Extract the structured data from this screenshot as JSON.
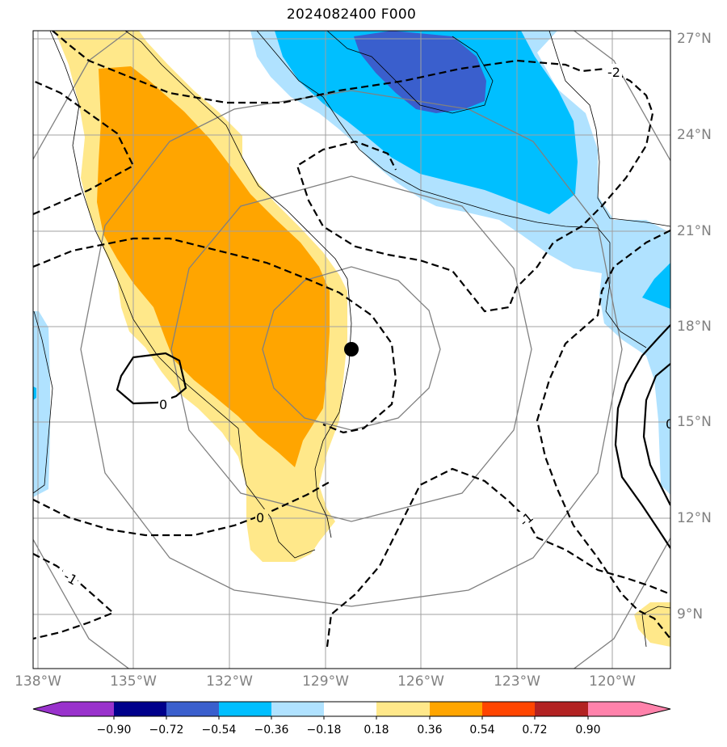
{
  "title": "2024082400 F000",
  "map": {
    "lon_labels": [
      "138°W",
      "135°W",
      "132°W",
      "129°W",
      "126°W",
      "123°W",
      "120°W"
    ],
    "lat_labels": [
      "27°N",
      "24°N",
      "21°N",
      "18°N",
      "15°N",
      "12°N",
      "9°N"
    ],
    "contour_labels": [
      "-2",
      "0",
      "0",
      "-1",
      "-1",
      "0"
    ],
    "storm_center": {
      "lon": "128.2°W",
      "lat": "17.3°N"
    }
  },
  "colorbar": {
    "ticks": [
      "−0.90",
      "−0.72",
      "−0.54",
      "−0.36",
      "−0.18",
      "0.18",
      "0.36",
      "0.54",
      "0.72",
      "0.90"
    ],
    "colors": [
      "#9932cc",
      "#00008b",
      "#3a5fcd",
      "#00bfff",
      "#b0e2ff",
      "#ffffff",
      "#ffe88a",
      "#ffa500",
      "#ff4500",
      "#b22222",
      "#ff82ab"
    ]
  },
  "colors": {
    "yellow": "#ffe88a",
    "orange": "#ffa500",
    "light_blue": "#b0e2ff",
    "blue": "#00bfff",
    "dark_blue": "#3a5fcd",
    "grid": "#a0a0a0",
    "ring": "#808080"
  }
}
